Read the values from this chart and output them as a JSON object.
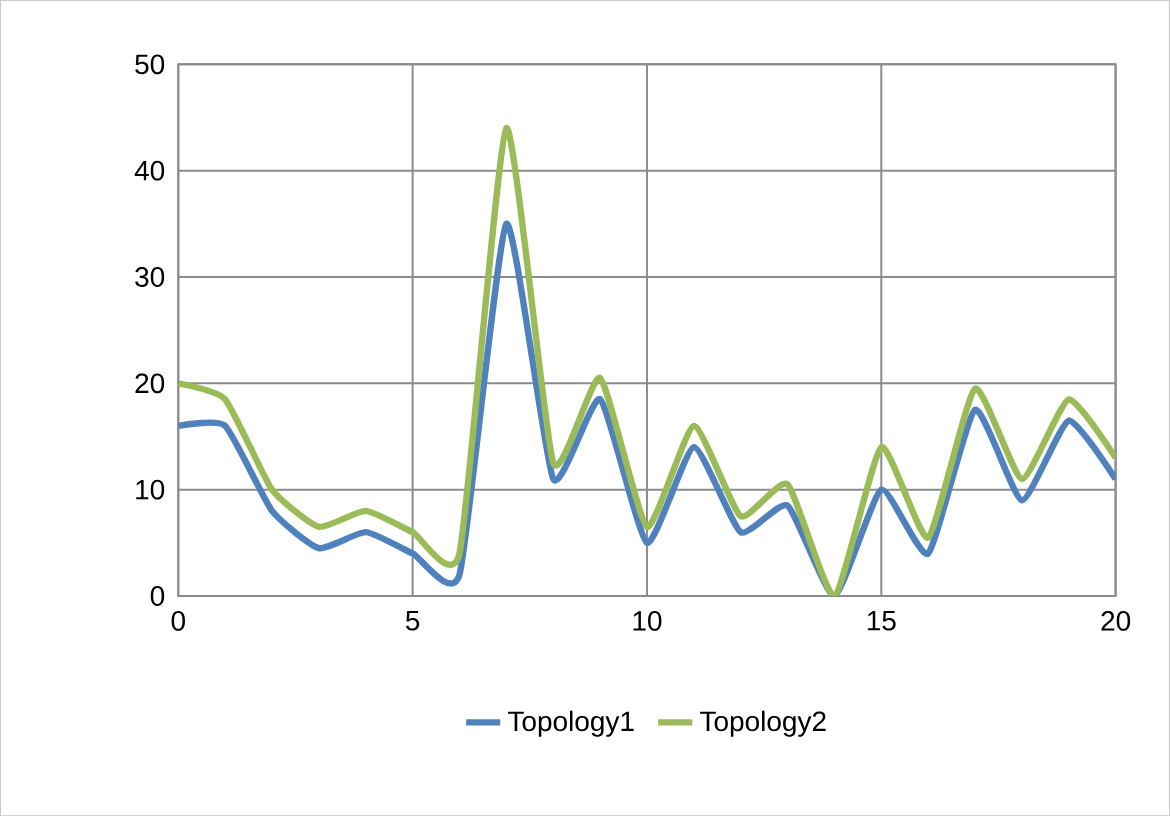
{
  "chart_data": {
    "type": "line",
    "x": [
      0,
      1,
      2,
      3,
      4,
      5,
      6,
      7,
      8,
      9,
      10,
      11,
      12,
      13,
      14,
      15,
      16,
      17,
      18,
      19,
      20
    ],
    "series": [
      {
        "name": "Topology1",
        "color": "#4f81bd",
        "values": [
          16,
          16,
          8,
          4.5,
          6,
          4,
          2,
          35,
          11,
          18.5,
          5,
          14,
          6,
          8.5,
          0,
          10,
          4,
          17.5,
          9,
          16.5,
          11
        ]
      },
      {
        "name": "Topology2",
        "color": "#9bbb59",
        "values": [
          20,
          18.5,
          10,
          6.5,
          8,
          6,
          4,
          44,
          12.5,
          20.5,
          6.5,
          16,
          7.5,
          10.5,
          0,
          14,
          5.5,
          19.5,
          11,
          18.5,
          13
        ]
      }
    ],
    "xlim": [
      0,
      20
    ],
    "xticks": [
      0,
      5,
      10,
      15,
      20
    ],
    "ylim": [
      0,
      50
    ],
    "yticks": [
      0,
      10,
      20,
      30,
      40,
      50
    ],
    "grid": true,
    "legend": "bottom",
    "marker": "none",
    "line_style": "solid"
  }
}
